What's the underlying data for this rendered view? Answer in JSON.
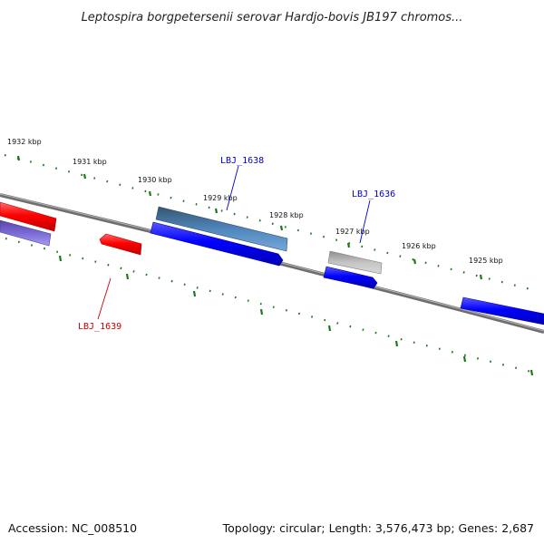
{
  "title": "Leptospira borgpetersenii serovar Hardjo-bovis JB197 chromos...",
  "footer": {
    "accession": "Accession: NC_008510",
    "topology": "Topology: circular; Length: 3,576,473 bp; Genes: 2,687"
  },
  "scale_labels": [
    "1932 kbp",
    "1931 kbp",
    "1930 kbp",
    "1929 kbp",
    "1928 kbp",
    "1927 kbp",
    "1926 kbp",
    "1925 kbp"
  ],
  "gene_labels": [
    {
      "text": "LBJ_1638",
      "color": "#0000cc"
    },
    {
      "text": "LBJ_1636",
      "color": "#0000cc"
    },
    {
      "text": "LBJ_1639",
      "color": "#cc0000"
    }
  ],
  "colors": {
    "backbone": "#7a7a7a",
    "ticks": "#1a7a1a",
    "forward_gene": "#ff0000",
    "reverse_gene": "#0000ff",
    "blue_gray_gene": "#4f86bd",
    "gray_gene": "#b8b8b8",
    "lavender_gene": "#6a5acd"
  }
}
